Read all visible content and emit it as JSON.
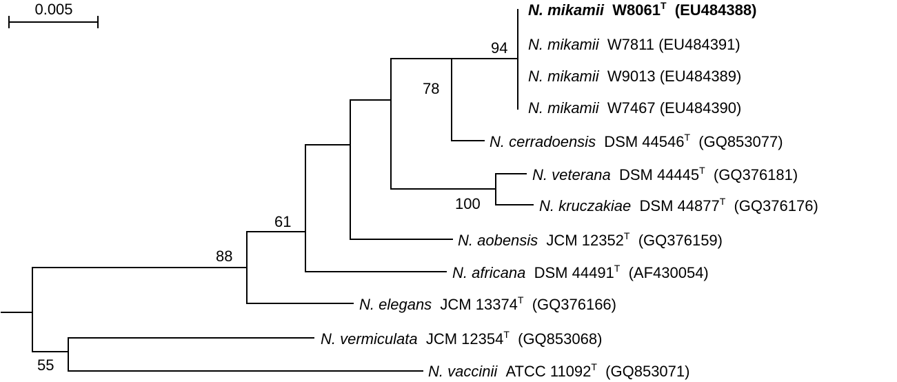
{
  "scale_bar": {
    "label": "0.005"
  },
  "taxa": [
    {
      "genus": "N. mikamii",
      "strain": "W8061",
      "type": "T",
      "accession": "(EU484388)",
      "bold": true
    },
    {
      "genus": "N. mikamii",
      "strain": "W7811",
      "type": "",
      "accession": "(EU484391)"
    },
    {
      "genus": "N. mikamii",
      "strain": "W9013",
      "type": "",
      "accession": "(EU484389)"
    },
    {
      "genus": "N. mikamii",
      "strain": "W7467",
      "type": "",
      "accession": "(EU484390)"
    },
    {
      "genus": "N. cerradoensis",
      "strain": "DSM 44546",
      "type": "T",
      "accession": "(GQ853077)"
    },
    {
      "genus": "N. veterana",
      "strain": "DSM 44445",
      "type": "T",
      "accession": "(GQ376181)"
    },
    {
      "genus": "N. kruczakiae",
      "strain": "DSM 44877",
      "type": "T",
      "accession": "(GQ376176)"
    },
    {
      "genus": "N. aobensis",
      "strain": "JCM 12352",
      "type": "T",
      "accession": "(GQ376159)"
    },
    {
      "genus": "N. africana",
      "strain": "DSM 44491",
      "type": "T",
      "accession": "(AF430054)"
    },
    {
      "genus": "N. elegans",
      "strain": "JCM 13374",
      "type": "T",
      "accession": "(GQ376166)"
    },
    {
      "genus": "N. vermiculata",
      "strain": "JCM 12354",
      "type": "T",
      "accession": "(GQ853068)"
    },
    {
      "genus": "N. vaccinii",
      "strain": "ATCC 11092",
      "type": "T",
      "accession": "(GQ853071)"
    }
  ],
  "bootstrap": {
    "n94": "94",
    "n78": "78",
    "n100": "100",
    "n61": "61",
    "n88": "88",
    "n55": "55"
  }
}
